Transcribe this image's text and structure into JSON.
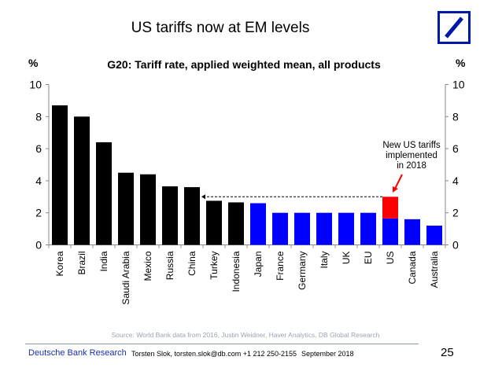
{
  "slide_title": "US tariffs now at EM levels",
  "logo": {
    "name": "deutsche-bank-logo",
    "color": "#0018a8"
  },
  "chart_data": {
    "type": "bar",
    "title": "G20: Tariff rate, applied weighted mean, all products",
    "ylabel_left": "%",
    "ylabel_right": "%",
    "ylim": [
      0,
      10
    ],
    "yticks": [
      0,
      2,
      4,
      6,
      8,
      10
    ],
    "categories": [
      "Korea",
      "Brazil",
      "India",
      "Saudi Arabia",
      "Mexico",
      "Russia",
      "China",
      "Turkey",
      "Indonesia",
      "Japan",
      "France",
      "Germany",
      "Italy",
      "UK",
      "EU",
      "US",
      "Canada",
      "Australia"
    ],
    "values": [
      8.7,
      8.0,
      6.4,
      4.5,
      4.4,
      3.65,
      3.6,
      2.75,
      2.65,
      2.6,
      2.0,
      2.0,
      2.0,
      2.0,
      2.0,
      1.65,
      1.6,
      1.2
    ],
    "bar_colors": [
      "#000000",
      "#000000",
      "#000000",
      "#000000",
      "#000000",
      "#000000",
      "#000000",
      "#000000",
      "#000000",
      "#0000ff",
      "#0000ff",
      "#0000ff",
      "#0000ff",
      "#0000ff",
      "#0000ff",
      "#0000ff",
      "#0000ff",
      "#0000ff"
    ],
    "stacked_addition": {
      "category": "US",
      "from": 1.65,
      "to": 3.0,
      "color": "#ff0000"
    },
    "reference_line": {
      "value": 3.0,
      "from": "US",
      "to": "China",
      "style": "dashed-arrow"
    },
    "annotation": {
      "text_lines": [
        "New US tariffs",
        "implemented",
        "in 2018"
      ],
      "color": "#ff0000"
    },
    "grid": false
  },
  "source": "Source: World Bank data from 2016, Justin Weidner, Haver Analytics, DB Global Research",
  "footer": {
    "brand": "Deutsche Bank Research",
    "contact": "Torsten Slok, torsten.slok@db.com  +1 212 250-2155",
    "date": "September 2018",
    "page_number": "25"
  }
}
